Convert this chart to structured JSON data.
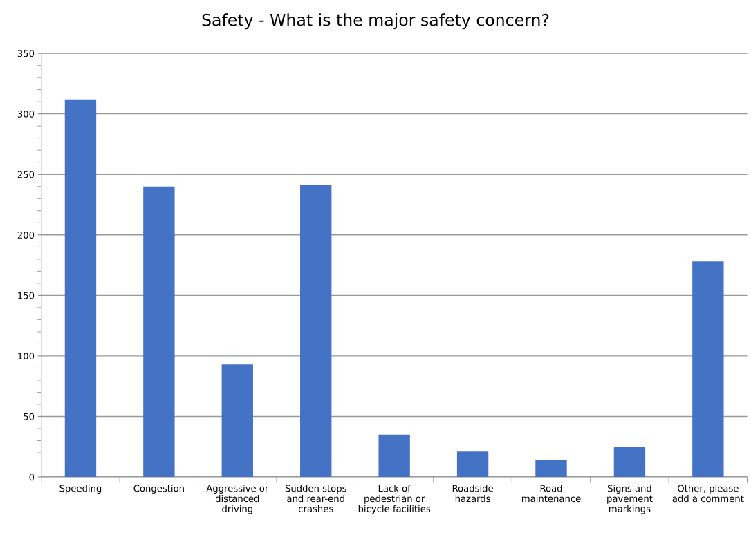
{
  "chart_data": {
    "type": "bar",
    "title": "Safety - What is the major safety concern?",
    "categories": [
      "Speeding",
      "Congestion",
      "Aggressive or\ndistanced\ndriving",
      "Sudden stops\nand rear-end\ncrashes",
      "Lack of\npedestrian or\nbicycle facilities",
      "Roadside\nhazards",
      "Road\nmaintenance",
      "Signs and\npavement\nmarkings",
      "Other, please\nadd a comment"
    ],
    "values": [
      312,
      240,
      93,
      241,
      35,
      21,
      14,
      25,
      178
    ],
    "color": "#4472c4",
    "ylim": [
      0,
      350
    ],
    "yticks": [
      0,
      50,
      100,
      150,
      200,
      250,
      300,
      350
    ],
    "grid": "y"
  }
}
